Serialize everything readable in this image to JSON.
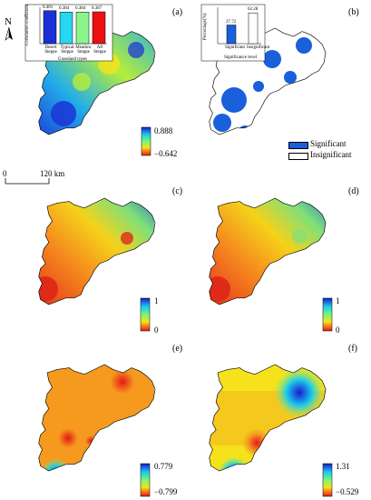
{
  "panels": {
    "a": {
      "label": "(a)",
      "inset_chart": {
        "type": "bar",
        "ylabel": "Correlation coefficient",
        "xlabel": "Grassland types",
        "categories": [
          {
            "line1": "Desert",
            "line2": "Steppe"
          },
          {
            "line1": "Typical",
            "line2": "Steppe"
          },
          {
            "line1": "Meadow",
            "line2": "Steppe"
          },
          {
            "line1": "All",
            "line2": "Steppe"
          }
        ],
        "values": [
          0.401,
          0.384,
          0.384,
          0.387
        ],
        "value_labels": [
          "0.401",
          "0.384",
          "0.384",
          "0.387"
        ],
        "colors": [
          "#1a2fd6",
          "#27d6f0",
          "#8cf58c",
          "#ee1111"
        ],
        "ylim": [
          0,
          0.42
        ]
      },
      "colorbar": {
        "max": "0.888",
        "min": "−0.642"
      }
    },
    "b": {
      "label": "(b)",
      "inset_chart": {
        "type": "bar",
        "ylabel": "Percentage(%)",
        "xlabel": "Significance level",
        "categories": [
          "Significant",
          "Insignificant"
        ],
        "values": [
          37.72,
          62.28
        ],
        "value_labels": [
          "37.72",
          "62.28"
        ],
        "colors": [
          "#1a5fdb",
          "#ffffff"
        ],
        "ylim": [
          0,
          70
        ]
      },
      "legend": {
        "significant": "Significant",
        "insignificant": "Insignificant"
      }
    },
    "c": {
      "label": "(c)",
      "colorbar": {
        "max": "1",
        "min": "0"
      }
    },
    "d": {
      "label": "(d)",
      "colorbar": {
        "max": "1",
        "min": "0"
      }
    },
    "e": {
      "label": "(e)",
      "colorbar": {
        "max": "0.779",
        "min": "−0.799"
      }
    },
    "f": {
      "label": "(f)",
      "colorbar": {
        "max": "1.31",
        "min": "−0.529"
      }
    }
  },
  "north_arrow": {
    "letter": "N"
  },
  "scale_bar": {
    "start": "0",
    "end": "120 km"
  },
  "colors": {
    "blue": "#1a2fd6",
    "red": "#e81818",
    "yellow": "#f5e21a",
    "orange": "#f59a1f",
    "significant_blue": "#1a5fdb"
  }
}
